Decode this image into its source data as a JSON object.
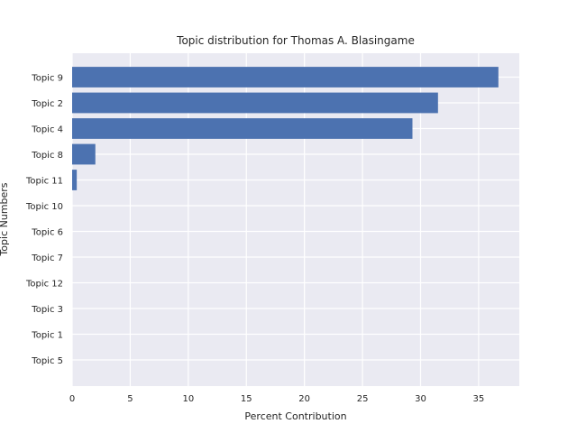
{
  "chart_data": {
    "type": "bar",
    "orientation": "horizontal",
    "title": "Topic distribution for Thomas A. Blasingame",
    "xlabel": "Percent Contribution",
    "ylabel": "Topic Numbers",
    "categories": [
      "Topic 9",
      "Topic 2",
      "Topic 4",
      "Topic 8",
      "Topic 11",
      "Topic 10",
      "Topic 6",
      "Topic 7",
      "Topic 12",
      "Topic 3",
      "Topic 1",
      "Topic 5"
    ],
    "values": [
      36.7,
      31.5,
      29.3,
      2.0,
      0.4,
      0,
      0,
      0,
      0,
      0,
      0,
      0
    ],
    "xlim": [
      0,
      38.5
    ],
    "xticks": [
      0,
      5,
      10,
      15,
      20,
      25,
      30,
      35
    ],
    "grid": true,
    "colors": {
      "bar": "#4c72b0",
      "plot_bg": "#eaeaf2",
      "grid": "#ffffff"
    }
  }
}
